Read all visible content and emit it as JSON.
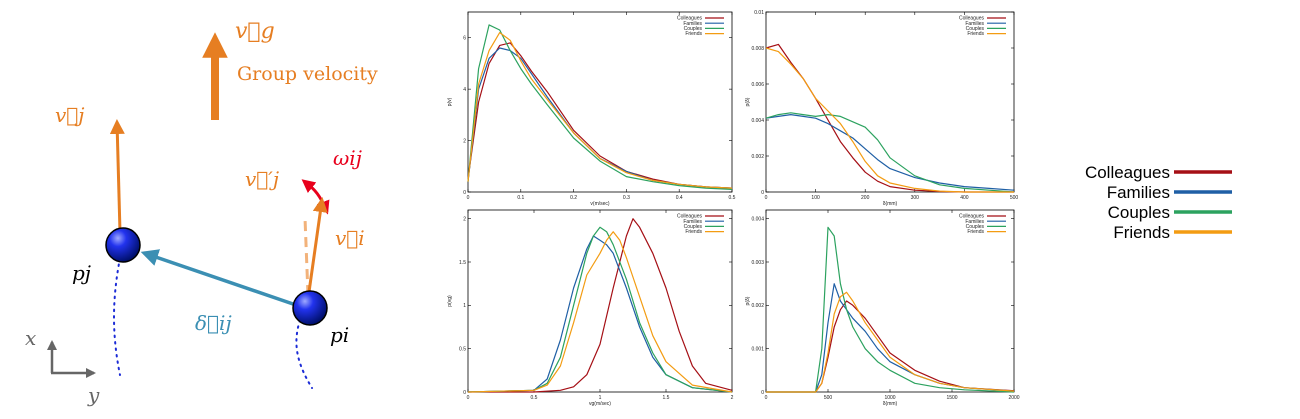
{
  "diagram": {
    "group_velocity_symbol": "v⃗g",
    "group_velocity_label": "Group velocity",
    "vj_label": "v⃗j",
    "vj_prime_label": "v⃗′j",
    "omega_label": "ωij",
    "vi_label": "v⃗i",
    "pj_label": "pj",
    "pi_label": "pi",
    "delta_label": "δ⃗ij",
    "axis_x_label": "x",
    "axis_y_label": "y",
    "colors": {
      "velocity": "#e67e22",
      "omega": "#e8001c",
      "delta": "#3b8fb3",
      "axes": "#666666",
      "trajectory": "#1b2bd6"
    }
  },
  "legend": {
    "entries": [
      {
        "name": "Colleagues",
        "color": "#a50f15"
      },
      {
        "name": "Families",
        "color": "#1f5fa5"
      },
      {
        "name": "Couples",
        "color": "#2ca25f"
      },
      {
        "name": "Friends",
        "color": "#f39c12"
      }
    ]
  },
  "chart_data": [
    {
      "type": "line",
      "xlabel": "v(m/sec)",
      "ylabel": "p(v)",
      "xlim": [
        0,
        0.5
      ],
      "ylim": [
        0,
        7
      ],
      "xticks": [
        0,
        0.1,
        0.2,
        0.3,
        0.4,
        0.5
      ],
      "xtick_labels": [
        "0",
        "0.1",
        "0.2",
        "0.3",
        "0.4",
        "0.5"
      ],
      "yticks": [
        0,
        2,
        4,
        6
      ],
      "ytick_labels": [
        "0",
        "2",
        "4",
        "6"
      ],
      "legend": [
        "Colleagues",
        "Families",
        "Couples",
        "Friends"
      ],
      "series": [
        {
          "name": "Colleagues",
          "x": [
            0,
            0.02,
            0.04,
            0.06,
            0.08,
            0.1,
            0.12,
            0.15,
            0.2,
            0.25,
            0.3,
            0.35,
            0.4,
            0.45,
            0.5
          ],
          "y": [
            0.5,
            3.5,
            5.0,
            5.7,
            5.8,
            5.3,
            4.7,
            3.9,
            2.4,
            1.4,
            0.8,
            0.5,
            0.3,
            0.2,
            0.15
          ]
        },
        {
          "name": "Families",
          "x": [
            0,
            0.02,
            0.04,
            0.06,
            0.08,
            0.1,
            0.12,
            0.15,
            0.2,
            0.25,
            0.3,
            0.35,
            0.4,
            0.45,
            0.5
          ],
          "y": [
            0.4,
            4.0,
            5.2,
            5.6,
            5.5,
            5.2,
            4.6,
            3.7,
            2.3,
            1.3,
            0.8,
            0.45,
            0.3,
            0.2,
            0.15
          ]
        },
        {
          "name": "Couples",
          "x": [
            0,
            0.02,
            0.04,
            0.06,
            0.08,
            0.1,
            0.12,
            0.15,
            0.2,
            0.25,
            0.3,
            0.35,
            0.4,
            0.45,
            0.5
          ],
          "y": [
            0.4,
            4.8,
            6.5,
            6.3,
            5.5,
            4.8,
            4.2,
            3.4,
            2.1,
            1.2,
            0.6,
            0.4,
            0.25,
            0.15,
            0.1
          ]
        },
        {
          "name": "Friends",
          "x": [
            0,
            0.02,
            0.04,
            0.06,
            0.08,
            0.1,
            0.12,
            0.15,
            0.2,
            0.25,
            0.3,
            0.35,
            0.4,
            0.45,
            0.5
          ],
          "y": [
            0.4,
            4.2,
            5.5,
            6.2,
            5.9,
            5.1,
            4.4,
            3.6,
            2.3,
            1.3,
            0.75,
            0.45,
            0.3,
            0.2,
            0.15
          ]
        }
      ]
    },
    {
      "type": "line",
      "xlabel": "δ(mm)",
      "ylabel": "p(δ)",
      "xlim": [
        0,
        500
      ],
      "ylim": [
        0,
        0.01
      ],
      "xticks": [
        0,
        100,
        200,
        300,
        400,
        500
      ],
      "xtick_labels": [
        "0",
        "100",
        "200",
        "300",
        "400",
        "500"
      ],
      "yticks": [
        0,
        0.002,
        0.004,
        0.006,
        0.008,
        0.01
      ],
      "ytick_labels": [
        "0",
        "0.002",
        "0.004",
        "0.006",
        "0.008",
        "0.01"
      ],
      "legend": [
        "Colleagues",
        "Families",
        "Couples",
        "Friends"
      ],
      "series": [
        {
          "name": "Colleagues",
          "x": [
            0,
            25,
            50,
            75,
            100,
            125,
            150,
            175,
            200,
            225,
            250,
            300,
            350,
            400,
            450,
            500
          ],
          "y": [
            0.008,
            0.0082,
            0.0072,
            0.0063,
            0.0052,
            0.004,
            0.0028,
            0.0019,
            0.0011,
            0.0006,
            0.0003,
            0.0001,
            3e-05,
            0,
            0,
            0
          ]
        },
        {
          "name": "Families",
          "x": [
            0,
            25,
            50,
            75,
            100,
            125,
            150,
            175,
            200,
            225,
            250,
            300,
            350,
            400,
            450,
            500
          ],
          "y": [
            0.0041,
            0.0042,
            0.0043,
            0.0042,
            0.0041,
            0.0038,
            0.0034,
            0.003,
            0.0024,
            0.0018,
            0.0013,
            0.0008,
            0.0005,
            0.0003,
            0.0002,
            0.0001
          ]
        },
        {
          "name": "Couples",
          "x": [
            0,
            25,
            50,
            75,
            100,
            125,
            150,
            175,
            200,
            225,
            250,
            300,
            350,
            400,
            450,
            500
          ],
          "y": [
            0.0041,
            0.0043,
            0.0044,
            0.0043,
            0.0042,
            0.0043,
            0.0042,
            0.0039,
            0.0036,
            0.0029,
            0.0019,
            0.0009,
            0.0004,
            0.0002,
            0.0001,
            0
          ]
        },
        {
          "name": "Friends",
          "x": [
            0,
            25,
            50,
            75,
            100,
            125,
            150,
            175,
            200,
            225,
            250,
            300,
            350,
            400,
            450,
            500
          ],
          "y": [
            0.008,
            0.0078,
            0.0071,
            0.0063,
            0.0052,
            0.0045,
            0.0038,
            0.0028,
            0.0017,
            0.0009,
            0.0005,
            0.0002,
            5e-05,
            0,
            0,
            0
          ]
        }
      ]
    },
    {
      "type": "line",
      "xlabel": "vg(m/sec)",
      "ylabel": "p(vg)",
      "xlim": [
        0,
        2
      ],
      "ylim": [
        0,
        2.1
      ],
      "xticks": [
        0,
        0.5,
        1,
        1.5,
        2
      ],
      "xtick_labels": [
        "0",
        "0.5",
        "1",
        "1.5",
        "2"
      ],
      "yticks": [
        0,
        0.5,
        1,
        1.5,
        2
      ],
      "ytick_labels": [
        "0",
        "0.5",
        "1",
        "1.5",
        "2"
      ],
      "legend": [
        "Colleagues",
        "Families",
        "Couples",
        "Friends"
      ],
      "series": [
        {
          "name": "Colleagues",
          "x": [
            0,
            0.5,
            0.7,
            0.8,
            0.9,
            1.0,
            1.1,
            1.2,
            1.25,
            1.3,
            1.4,
            1.5,
            1.6,
            1.7,
            1.8,
            2.0
          ],
          "y": [
            0,
            0,
            0.02,
            0.06,
            0.2,
            0.55,
            1.2,
            1.8,
            2.0,
            1.9,
            1.6,
            1.2,
            0.7,
            0.3,
            0.1,
            0.02
          ]
        },
        {
          "name": "Families",
          "x": [
            0,
            0.5,
            0.6,
            0.7,
            0.8,
            0.9,
            0.95,
            1.0,
            1.05,
            1.1,
            1.2,
            1.3,
            1.4,
            1.5,
            1.7,
            2.0
          ],
          "y": [
            0,
            0.02,
            0.15,
            0.6,
            1.2,
            1.65,
            1.8,
            1.75,
            1.7,
            1.6,
            1.2,
            0.75,
            0.4,
            0.2,
            0.05,
            0
          ]
        },
        {
          "name": "Couples",
          "x": [
            0,
            0.5,
            0.6,
            0.7,
            0.8,
            0.9,
            0.95,
            1.0,
            1.05,
            1.1,
            1.2,
            1.3,
            1.4,
            1.5,
            1.7,
            2.0
          ],
          "y": [
            0,
            0.02,
            0.1,
            0.4,
            1.0,
            1.6,
            1.8,
            1.9,
            1.85,
            1.7,
            1.3,
            0.8,
            0.45,
            0.2,
            0.05,
            0
          ]
        },
        {
          "name": "Friends",
          "x": [
            0,
            0.5,
            0.6,
            0.7,
            0.8,
            0.9,
            1.0,
            1.05,
            1.1,
            1.15,
            1.2,
            1.3,
            1.4,
            1.5,
            1.7,
            2.0
          ],
          "y": [
            0,
            0.02,
            0.08,
            0.3,
            0.8,
            1.35,
            1.6,
            1.75,
            1.85,
            1.75,
            1.55,
            1.1,
            0.65,
            0.35,
            0.08,
            0
          ]
        }
      ]
    },
    {
      "type": "line",
      "xlabel": "δ(mm)",
      "ylabel": "p(δ)",
      "xlim": [
        0,
        2000
      ],
      "ylim": [
        0,
        0.0042
      ],
      "xticks": [
        0,
        500,
        1000,
        1500,
        2000
      ],
      "xtick_labels": [
        "0",
        "500",
        "1000",
        "1500",
        "2000"
      ],
      "yticks": [
        0,
        0.001,
        0.002,
        0.003,
        0.004
      ],
      "ytick_labels": [
        "0",
        "0.001",
        "0.002",
        "0.003",
        "0.004"
      ],
      "legend": [
        "Colleagues",
        "Families",
        "Couples",
        "Friends"
      ],
      "series": [
        {
          "name": "Colleagues",
          "x": [
            0,
            400,
            450,
            500,
            550,
            600,
            650,
            700,
            800,
            900,
            1000,
            1200,
            1400,
            1600,
            2000
          ],
          "y": [
            0,
            0,
            0.0002,
            0.0008,
            0.0015,
            0.0019,
            0.0021,
            0.002,
            0.0017,
            0.0013,
            0.0009,
            0.0005,
            0.00025,
            0.0001,
            3e-05
          ]
        },
        {
          "name": "Families",
          "x": [
            0,
            400,
            450,
            500,
            550,
            600,
            650,
            700,
            800,
            900,
            1000,
            1200,
            1400,
            1600,
            2000
          ],
          "y": [
            0,
            0,
            0.0004,
            0.0016,
            0.0025,
            0.0021,
            0.0019,
            0.0017,
            0.0014,
            0.001,
            0.0007,
            0.0004,
            0.0002,
            0.0001,
            2e-05
          ]
        },
        {
          "name": "Couples",
          "x": [
            0,
            400,
            450,
            500,
            550,
            600,
            650,
            700,
            800,
            900,
            1000,
            1200,
            1400,
            1600,
            2000
          ],
          "y": [
            0,
            0,
            0.001,
            0.0038,
            0.0036,
            0.0025,
            0.0019,
            0.0015,
            0.001,
            0.0007,
            0.0005,
            0.0002,
            0.0001,
            5e-05,
            0
          ]
        },
        {
          "name": "Friends",
          "x": [
            0,
            400,
            450,
            500,
            550,
            600,
            650,
            700,
            800,
            900,
            1000,
            1200,
            1400,
            1600,
            2000
          ],
          "y": [
            0,
            0,
            0.0002,
            0.0009,
            0.0018,
            0.0022,
            0.0023,
            0.0021,
            0.0016,
            0.0012,
            0.0008,
            0.0004,
            0.0002,
            0.0001,
            2e-05
          ]
        }
      ]
    }
  ]
}
